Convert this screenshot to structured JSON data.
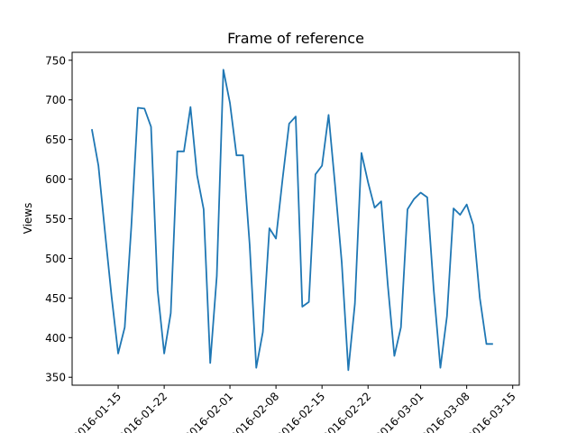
{
  "chart_data": {
    "type": "line",
    "title": "Frame of reference",
    "xlabel": "",
    "ylabel": "Views",
    "xlim": [
      "2016-01-08",
      "2016-03-16"
    ],
    "ylim": [
      340,
      760
    ],
    "x_ticks": [
      "2016-01-15",
      "2016-01-22",
      "2016-02-01",
      "2016-02-08",
      "2016-02-15",
      "2016-02-22",
      "2016-03-01",
      "2016-03-08",
      "2016-03-15"
    ],
    "y_ticks": [
      350,
      400,
      450,
      500,
      550,
      600,
      650,
      700,
      750
    ],
    "grid": false,
    "line_color": "#1f77b4",
    "series": [
      {
        "x": [
          "2016-01-11",
          "2016-01-12",
          "2016-01-13",
          "2016-01-14",
          "2016-01-15",
          "2016-01-16",
          "2016-01-17",
          "2016-01-18",
          "2016-01-19",
          "2016-01-20",
          "2016-01-21",
          "2016-01-22",
          "2016-01-23",
          "2016-01-24",
          "2016-01-25",
          "2016-01-26",
          "2016-01-27",
          "2016-01-28",
          "2016-01-29",
          "2016-01-30",
          "2016-01-31",
          "2016-02-01",
          "2016-02-02",
          "2016-02-03",
          "2016-02-04",
          "2016-02-05",
          "2016-02-06",
          "2016-02-07",
          "2016-02-08",
          "2016-02-09",
          "2016-02-10",
          "2016-02-11",
          "2016-02-12",
          "2016-02-13",
          "2016-02-14",
          "2016-02-15",
          "2016-02-16",
          "2016-02-17",
          "2016-02-18",
          "2016-02-19",
          "2016-02-20",
          "2016-02-21",
          "2016-02-22",
          "2016-02-23",
          "2016-02-24",
          "2016-02-25",
          "2016-02-26",
          "2016-02-27",
          "2016-02-28",
          "2016-02-29",
          "2016-03-01",
          "2016-03-02",
          "2016-03-03",
          "2016-03-04",
          "2016-03-05",
          "2016-03-06",
          "2016-03-07",
          "2016-03-08",
          "2016-03-09",
          "2016-03-10",
          "2016-03-11",
          "2016-03-12"
        ],
        "values": [
          663,
          617,
          533,
          452,
          380,
          413,
          540,
          690,
          689,
          666,
          460,
          380,
          431,
          635,
          635,
          691,
          605,
          562,
          368,
          478,
          738,
          696,
          630,
          630,
          517,
          362,
          407,
          538,
          525,
          600,
          670,
          679,
          439,
          445,
          606,
          617,
          681,
          591,
          495,
          359,
          443,
          633,
          596,
          564,
          572,
          467,
          377,
          413,
          562,
          575,
          583,
          577,
          459,
          362,
          427,
          563,
          555,
          568,
          542,
          450,
          392,
          392
        ]
      }
    ]
  }
}
